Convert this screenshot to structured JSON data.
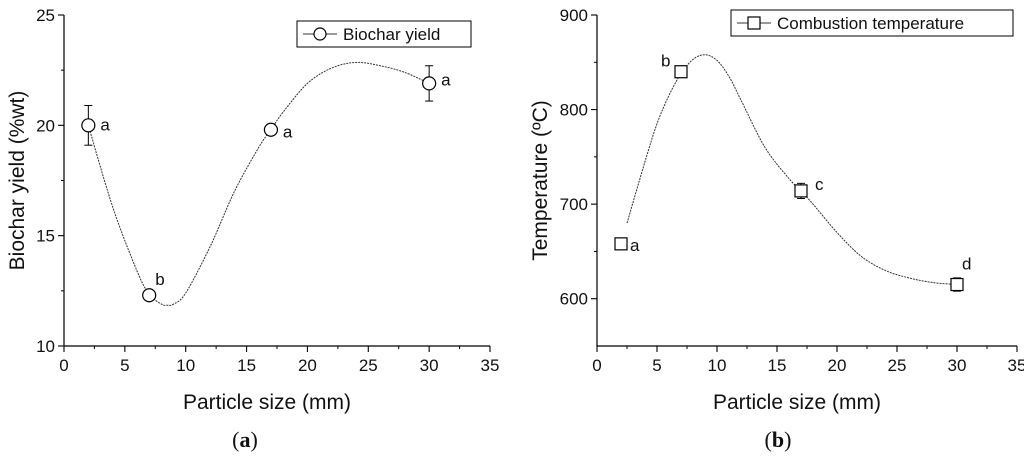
{
  "chart_data": [
    {
      "type": "scatter",
      "caption": {
        "open": "(",
        "letter": "a",
        "close": ")"
      },
      "xlabel": "Particle size (mm)",
      "ylabel": "Biochar yield (%wt)",
      "xlim": [
        0,
        35
      ],
      "ylim": [
        10,
        25
      ],
      "xticks": [
        0,
        5,
        10,
        15,
        20,
        25,
        30,
        35
      ],
      "yticks": [
        10,
        15,
        20,
        25
      ],
      "marker": "circle",
      "legend": {
        "label": "Biochar yield",
        "position": "top-right"
      },
      "grid": false,
      "series": [
        {
          "name": "Biochar yield",
          "x": [
            2,
            7,
            17,
            30
          ],
          "y": [
            20.0,
            12.3,
            19.8,
            21.9
          ],
          "err": [
            0.9,
            0.2,
            0.2,
            0.8
          ],
          "labels": [
            "a",
            "b",
            "a",
            "a"
          ]
        }
      ],
      "fit_curve": {
        "x": [
          2,
          4,
          6,
          7,
          8,
          8.5,
          9,
          10,
          12,
          14,
          16,
          17,
          18,
          20,
          22,
          24,
          26,
          28,
          30
        ],
        "y": [
          20.0,
          16.3,
          13.4,
          12.35,
          11.9,
          11.85,
          11.9,
          12.4,
          14.5,
          17.0,
          19.0,
          19.8,
          20.6,
          21.9,
          22.6,
          22.85,
          22.7,
          22.4,
          21.9
        ]
      }
    },
    {
      "type": "scatter",
      "caption": {
        "open": "(",
        "letter": "b",
        "close": ")"
      },
      "xlabel": "Particle size (mm)",
      "ylabel": "Temperature (ºC)",
      "xlim": [
        0,
        35
      ],
      "ylim": [
        550,
        900
      ],
      "xticks": [
        0,
        5,
        10,
        15,
        20,
        25,
        30,
        35
      ],
      "yticks": [
        600,
        700,
        800,
        900
      ],
      "marker": "square",
      "legend": {
        "label": "Combustion temperature",
        "position": "top-right"
      },
      "grid": false,
      "series": [
        {
          "name": "Combustion temperature",
          "x": [
            2,
            7,
            17,
            30
          ],
          "y": [
            658,
            840,
            714,
            615
          ],
          "err": [
            5,
            4,
            8,
            7
          ],
          "labels": [
            "a",
            "b",
            "c",
            "d"
          ]
        }
      ],
      "fit_curve": {
        "x": [
          2.5,
          4,
          5,
          6,
          7,
          8,
          9,
          10,
          11,
          12,
          14,
          16,
          17,
          18,
          20,
          22,
          24,
          26,
          28,
          30
        ],
        "y": [
          680,
          745,
          785,
          815,
          838,
          853,
          858,
          852,
          835,
          810,
          760,
          727,
          714,
          700,
          670,
          645,
          630,
          622,
          617,
          615
        ]
      }
    }
  ]
}
